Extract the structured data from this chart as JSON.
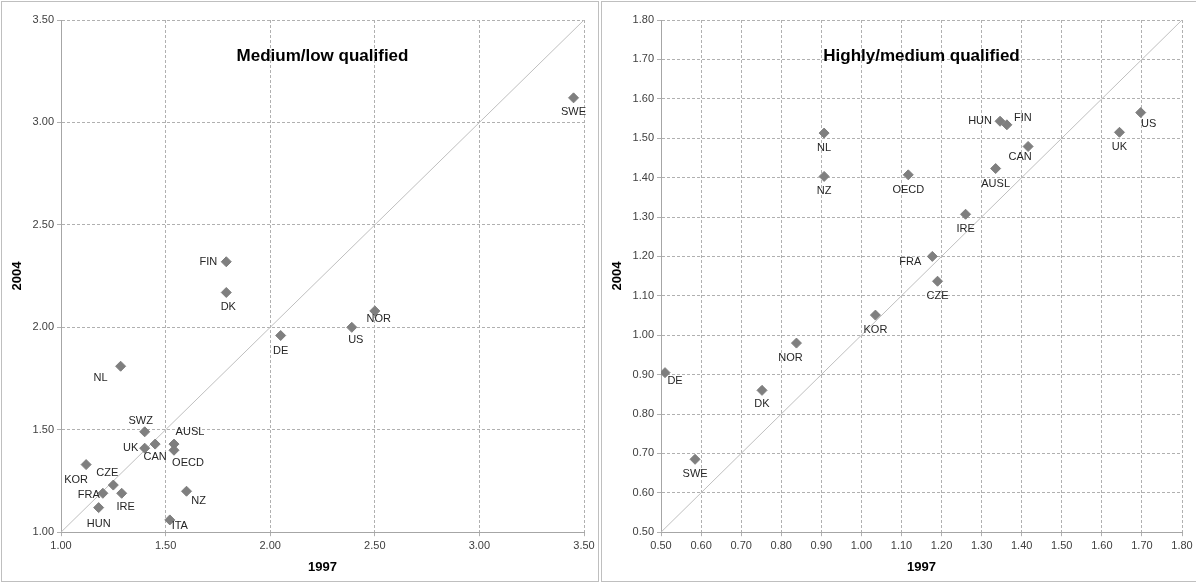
{
  "chart_data": [
    {
      "type": "scatter",
      "title": "Medium/low qualified",
      "xlabel": "1997",
      "ylabel": "2004",
      "xlim": [
        1,
        3.5
      ],
      "xticks": [
        {
          "value": 1,
          "label": "1.00"
        },
        {
          "value": 1.5,
          "label": "1.50"
        },
        {
          "value": 2,
          "label": "2.00"
        },
        {
          "value": 2.5,
          "label": "2.50"
        },
        {
          "value": 3,
          "label": "3.00"
        },
        {
          "value": 3.5,
          "label": "3.50"
        }
      ],
      "ylim": [
        1,
        3.5
      ],
      "yticks": [
        {
          "value": 1,
          "label": "1.00"
        },
        {
          "value": 1.5,
          "label": "1.50"
        },
        {
          "value": 2,
          "label": "2.00"
        },
        {
          "value": 2.5,
          "label": "2.50"
        },
        {
          "value": 3,
          "label": "3.00"
        },
        {
          "value": 3.5,
          "label": "3.50"
        }
      ],
      "grid": true,
      "legend": false,
      "marker": "diamond",
      "series": [
        {
          "type": "line",
          "color": "#bfbfbf",
          "marker": "none",
          "x": [
            1,
            3.5
          ],
          "values": [
            1,
            3.5
          ]
        },
        {
          "color": "#7f7f7f",
          "x": [
            3.45,
            1.79,
            1.79,
            2.05,
            2.39,
            2.5,
            1.285,
            1.4,
            1.4,
            1.45,
            1.54,
            1.54,
            1.12,
            1.25,
            1.2,
            1.29,
            1.18,
            1.6,
            1.52
          ],
          "values": [
            3.12,
            2.32,
            2.17,
            1.96,
            2.0,
            2.08,
            1.81,
            1.49,
            1.41,
            1.43,
            1.43,
            1.4,
            1.33,
            1.23,
            1.19,
            1.19,
            1.12,
            1.2,
            1.06
          ]
        }
      ],
      "annotations": [
        {
          "text": "SWE",
          "x": 3.45,
          "y": 3.12
        },
        {
          "text": "FIN",
          "x": 1.79,
          "y": 2.32
        },
        {
          "text": "DK",
          "x": 1.79,
          "y": 2.17
        },
        {
          "text": "DE",
          "x": 2.05,
          "y": 1.96
        },
        {
          "text": "US",
          "x": 2.39,
          "y": 2.0
        },
        {
          "text": "NOR",
          "x": 2.5,
          "y": 2.08
        },
        {
          "text": "NL",
          "x": 1.285,
          "y": 1.81
        },
        {
          "text": "SWZ",
          "x": 1.4,
          "y": 1.49
        },
        {
          "text": "UK",
          "x": 1.4,
          "y": 1.41
        },
        {
          "text": "CAN",
          "x": 1.45,
          "y": 1.43
        },
        {
          "text": "AUSL",
          "x": 1.54,
          "y": 1.43
        },
        {
          "text": "OECD",
          "x": 1.54,
          "y": 1.4
        },
        {
          "text": "KOR",
          "x": 1.12,
          "y": 1.33
        },
        {
          "text": "CZE",
          "x": 1.25,
          "y": 1.23
        },
        {
          "text": "FRA",
          "x": 1.2,
          "y": 1.19
        },
        {
          "text": "IRE",
          "x": 1.29,
          "y": 1.19
        },
        {
          "text": "HUN",
          "x": 1.18,
          "y": 1.12
        },
        {
          "text": "NZ",
          "x": 1.6,
          "y": 1.2
        },
        {
          "text": "ITA",
          "x": 1.52,
          "y": 1.06
        }
      ]
    },
    {
      "type": "scatter",
      "title": "Highly/medium qualified",
      "xlabel": "1997",
      "ylabel": "2004",
      "xlim": [
        0.5,
        1.8
      ],
      "xticks": [
        {
          "value": 0.5,
          "label": "0.50"
        },
        {
          "value": 0.6,
          "label": "0.60"
        },
        {
          "value": 0.7,
          "label": "0.70"
        },
        {
          "value": 0.8,
          "label": "0.80"
        },
        {
          "value": 0.9,
          "label": "0.90"
        },
        {
          "value": 1,
          "label": "1.00"
        },
        {
          "value": 1.1,
          "label": "1.10"
        },
        {
          "value": 1.2,
          "label": "1.20"
        },
        {
          "value": 1.3,
          "label": "1.30"
        },
        {
          "value": 1.4,
          "label": "1.40"
        },
        {
          "value": 1.5,
          "label": "1.50"
        },
        {
          "value": 1.6,
          "label": "1.60"
        },
        {
          "value": 1.7,
          "label": "1.70"
        },
        {
          "value": 1.8,
          "label": "1.80"
        }
      ],
      "ylim": [
        0.5,
        1.8
      ],
      "yticks": [
        {
          "value": 0.5,
          "label": "0.50"
        },
        {
          "value": 0.6,
          "label": "0.60"
        },
        {
          "value": 0.7,
          "label": "0.70"
        },
        {
          "value": 0.8,
          "label": "0.80"
        },
        {
          "value": 0.9,
          "label": "0.90"
        },
        {
          "value": 1,
          "label": "1.00"
        },
        {
          "value": 1.1,
          "label": "1.10"
        },
        {
          "value": 1.2,
          "label": "1.20"
        },
        {
          "value": 1.3,
          "label": "1.30"
        },
        {
          "value": 1.4,
          "label": "1.40"
        },
        {
          "value": 1.5,
          "label": "1.50"
        },
        {
          "value": 1.6,
          "label": "1.60"
        },
        {
          "value": 1.7,
          "label": "1.70"
        },
        {
          "value": 1.8,
          "label": "1.80"
        }
      ],
      "grid": true,
      "legend": false,
      "marker": "diamond",
      "series": [
        {
          "type": "line",
          "color": "#bfbfbf",
          "marker": "none",
          "x": [
            0.5,
            1.8
          ],
          "values": [
            0.5,
            1.8
          ]
        },
        {
          "color": "#7f7f7f",
          "x": [
            0.907,
            0.907,
            1.117,
            1.346,
            1.363,
            1.416,
            1.335,
            1.26,
            1.177,
            1.19,
            1.035,
            0.838,
            0.51,
            0.585,
            0.752,
            1.644,
            1.697
          ],
          "values": [
            1.513,
            1.403,
            1.407,
            1.543,
            1.534,
            1.479,
            1.423,
            1.307,
            1.2,
            1.137,
            1.051,
            0.98,
            0.905,
            0.685,
            0.86,
            1.515,
            1.565
          ]
        }
      ],
      "annotations": [
        {
          "text": "NL",
          "x": 0.907,
          "y": 1.513
        },
        {
          "text": "NZ",
          "x": 0.907,
          "y": 1.403
        },
        {
          "text": "OECD",
          "x": 1.117,
          "y": 1.407
        },
        {
          "text": "HUN",
          "x": 1.346,
          "y": 1.543
        },
        {
          "text": "FIN",
          "x": 1.363,
          "y": 1.534
        },
        {
          "text": "CAN",
          "x": 1.416,
          "y": 1.479
        },
        {
          "text": "AUSL",
          "x": 1.335,
          "y": 1.423
        },
        {
          "text": "IRE",
          "x": 1.26,
          "y": 1.307
        },
        {
          "text": "FRA",
          "x": 1.177,
          "y": 1.2
        },
        {
          "text": "CZE",
          "x": 1.19,
          "y": 1.137
        },
        {
          "text": "KOR",
          "x": 1.035,
          "y": 1.051
        },
        {
          "text": "NOR",
          "x": 0.838,
          "y": 0.98
        },
        {
          "text": "DE",
          "x": 0.51,
          "y": 0.905
        },
        {
          "text": "SWE",
          "x": 0.585,
          "y": 0.685
        },
        {
          "text": "DK",
          "x": 0.752,
          "y": 0.86
        },
        {
          "text": "UK",
          "x": 1.644,
          "y": 1.515
        },
        {
          "text": "US",
          "x": 1.697,
          "y": 1.565
        }
      ]
    }
  ]
}
